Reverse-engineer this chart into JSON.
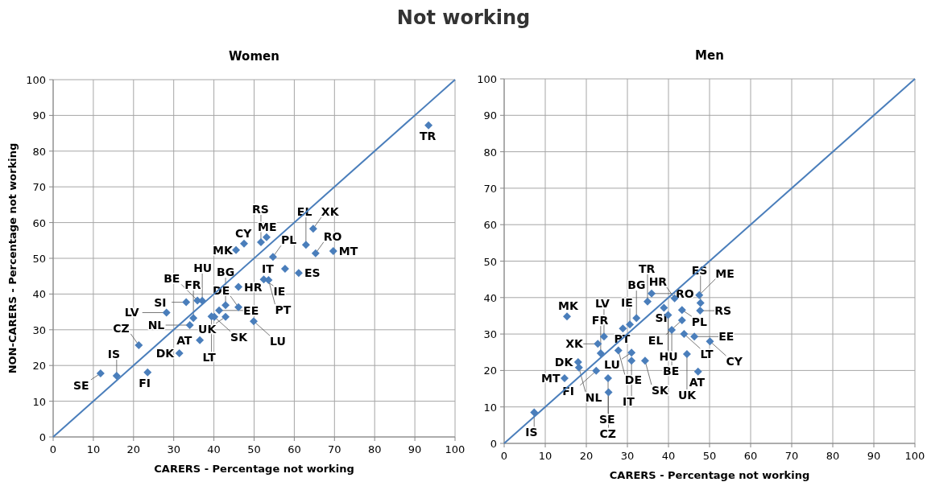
{
  "chart_data": [
    {
      "type": "scatter",
      "title": "Women",
      "xlabel": "CARERS - Percentage not working",
      "ylabel": "NON-CARERS - Percentage not working",
      "xlim": [
        0,
        100
      ],
      "ylim": [
        0,
        100
      ],
      "xticks": [
        0,
        10,
        20,
        30,
        40,
        50,
        60,
        70,
        80,
        90,
        100
      ],
      "yticks": [
        0,
        10,
        20,
        30,
        40,
        50,
        60,
        70,
        80,
        90,
        100
      ],
      "grid": true,
      "marker": "diamond",
      "series": [
        {
          "type": "scatter",
          "color": "#4a7ebb",
          "x": [
            11.8,
            15.8,
            21.3,
            23.5,
            31.4,
            36.5,
            34.0,
            40.1,
            42.9,
            49.9,
            46.1,
            42.9,
            41.3,
            39.4,
            34.9,
            35.9,
            33.1,
            28.2,
            37.1,
            46.1,
            45.5,
            47.5,
            51.7,
            53.1,
            54.7,
            57.7,
            52.4,
            53.6,
            61.1,
            62.9,
            64.7,
            69.7,
            65.3,
            93.4
          ],
          "values": [
            17.8,
            17.1,
            25.7,
            18.1,
            23.4,
            27.1,
            31.3,
            33.6,
            33.6,
            32.4,
            36.3,
            36.9,
            35.4,
            33.7,
            33.3,
            38.2,
            37.7,
            34.8,
            38.1,
            42.0,
            52.3,
            54.1,
            54.5,
            55.9,
            50.4,
            47.1,
            44.1,
            43.9,
            45.9,
            53.8,
            58.3,
            52.0,
            51.4,
            87.2
          ]
        },
        {
          "type": "line",
          "color": "#4a7ebb",
          "marker": "none",
          "x": [
            0,
            100
          ],
          "values": [
            0,
            100
          ]
        }
      ],
      "annotations": [
        "Not working",
        {
          "text": "SE",
          "x": 11.8,
          "y": 17.8
        },
        {
          "text": "IS",
          "x": 15.8,
          "y": 17.1
        },
        {
          "text": "CZ",
          "x": 21.3,
          "y": 25.7
        },
        {
          "text": "FI",
          "x": 23.5,
          "y": 18.1
        },
        {
          "text": "DK",
          "x": 31.4,
          "y": 23.4
        },
        {
          "text": "AT",
          "x": 36.5,
          "y": 27.1
        },
        {
          "text": "NL",
          "x": 34.0,
          "y": 31.3
        },
        {
          "text": "SK",
          "x": 40.1,
          "y": 33.6
        },
        {
          "text": "UK",
          "x": 42.9,
          "y": 33.6
        },
        {
          "text": "LU",
          "x": 49.9,
          "y": 32.4
        },
        {
          "text": "DE",
          "x": 46.1,
          "y": 36.3
        },
        {
          "text": "BG",
          "x": 42.9,
          "y": 36.9
        },
        {
          "text": "EE",
          "x": 41.3,
          "y": 35.4
        },
        {
          "text": "LT",
          "x": 39.4,
          "y": 33.7
        },
        {
          "text": "FR",
          "x": 34.9,
          "y": 33.3
        },
        {
          "text": "BE",
          "x": 35.9,
          "y": 38.2
        },
        {
          "text": "SI",
          "x": 33.1,
          "y": 37.7
        },
        {
          "text": "LV",
          "x": 28.2,
          "y": 34.8
        },
        {
          "text": "HU",
          "x": 37.1,
          "y": 38.1
        },
        {
          "text": "HR",
          "x": 46.1,
          "y": 42.0
        },
        {
          "text": "MK",
          "x": 45.5,
          "y": 52.3
        },
        {
          "text": "CY",
          "x": 47.5,
          "y": 54.1
        },
        {
          "text": "RS",
          "x": 51.7,
          "y": 54.5
        },
        {
          "text": "ME",
          "x": 53.1,
          "y": 55.9
        },
        {
          "text": "PL",
          "x": 54.7,
          "y": 50.4
        },
        {
          "text": "IT",
          "x": 57.7,
          "y": 47.1
        },
        {
          "text": "IE",
          "x": 52.4,
          "y": 44.1
        },
        {
          "text": "PT",
          "x": 53.6,
          "y": 43.9
        },
        {
          "text": "ES",
          "x": 61.1,
          "y": 45.9
        },
        {
          "text": "EL",
          "x": 62.9,
          "y": 53.8
        },
        {
          "text": "XK",
          "x": 64.7,
          "y": 58.3
        },
        {
          "text": "MT",
          "x": 69.7,
          "y": 52.0
        },
        {
          "text": "RO",
          "x": 65.3,
          "y": 51.4
        },
        {
          "text": "TR",
          "x": 93.4,
          "y": 87.2
        }
      ]
    },
    {
      "type": "scatter",
      "title": "Men",
      "xlabel": "CARERS - Percentage not working",
      "xlim": [
        0,
        100
      ],
      "ylim": [
        0,
        100
      ],
      "xticks": [
        0,
        10,
        20,
        30,
        40,
        50,
        60,
        70,
        80,
        90,
        100
      ],
      "yticks": [
        0,
        10,
        20,
        30,
        40,
        50,
        60,
        70,
        80,
        90,
        100
      ],
      "grid": true,
      "marker": "diamond",
      "series": [
        {
          "type": "scatter",
          "color": "#4a7ebb",
          "x": [
            7.3,
            18.2,
            14.7,
            18.0,
            22.8,
            24.3,
            28.9,
            32.2,
            30.6,
            27.8,
            23.5,
            22.4,
            25.3,
            25.4,
            31.0,
            31.0,
            34.3,
            15.3,
            34.9,
            35.9,
            38.9,
            41.5,
            39.9,
            40.8,
            43.3,
            43.3,
            43.8,
            44.5,
            47.2,
            47.5,
            47.8,
            47.7,
            46.3,
            50.1
          ],
          "values": [
            8.5,
            20.8,
            17.9,
            22.3,
            27.3,
            29.3,
            31.5,
            34.4,
            32.6,
            25.5,
            24.7,
            19.9,
            17.9,
            14.0,
            24.9,
            22.7,
            22.7,
            34.8,
            38.9,
            41.1,
            37.2,
            39.8,
            35.2,
            31.1,
            36.6,
            33.8,
            30.0,
            24.5,
            19.7,
            40.7,
            38.5,
            36.4,
            29.3,
            28.0
          ]
        },
        {
          "type": "line",
          "color": "#4a7ebb",
          "marker": "none",
          "x": [
            0,
            100
          ],
          "values": [
            0,
            100
          ]
        }
      ],
      "annotations": [
        {
          "text": "IS",
          "x": 7.3,
          "y": 8.5
        },
        {
          "text": "NL",
          "x": 18.2,
          "y": 20.8
        },
        {
          "text": "MT",
          "x": 14.7,
          "y": 17.9
        },
        {
          "text": "DK",
          "x": 18.0,
          "y": 22.3
        },
        {
          "text": "XK",
          "x": 22.8,
          "y": 27.3
        },
        {
          "text": "LV",
          "x": 24.3,
          "y": 29.3
        },
        {
          "text": "PT",
          "x": 28.9,
          "y": 31.5
        },
        {
          "text": "BG",
          "x": 32.2,
          "y": 34.4
        },
        {
          "text": "IE",
          "x": 30.6,
          "y": 32.6
        },
        {
          "text": "DE",
          "x": 27.8,
          "y": 25.5
        },
        {
          "text": "FR",
          "x": 23.5,
          "y": 24.7
        },
        {
          "text": "FI",
          "x": 22.4,
          "y": 19.9
        },
        {
          "text": "SE",
          "x": 25.3,
          "y": 17.9
        },
        {
          "text": "CZ",
          "x": 25.4,
          "y": 14.0
        },
        {
          "text": "LU",
          "x": 31.0,
          "y": 24.9
        },
        {
          "text": "IT",
          "x": 31.0,
          "y": 22.7
        },
        {
          "text": "SK",
          "x": 34.3,
          "y": 22.7
        },
        {
          "text": "MK",
          "x": 15.3,
          "y": 34.8
        },
        {
          "text": "TR",
          "x": 34.9,
          "y": 38.9
        },
        {
          "text": "RO",
          "x": 35.9,
          "y": 41.1
        },
        {
          "text": "SI",
          "x": 38.9,
          "y": 37.2
        },
        {
          "text": "HR",
          "x": 41.5,
          "y": 39.8
        },
        {
          "text": "HU",
          "x": 39.9,
          "y": 35.2
        },
        {
          "text": "BE",
          "x": 40.8,
          "y": 31.1
        },
        {
          "text": "PL",
          "x": 43.3,
          "y": 36.6
        },
        {
          "text": "EL",
          "x": 43.3,
          "y": 33.8
        },
        {
          "text": "LT",
          "x": 43.8,
          "y": 30.0
        },
        {
          "text": "UK",
          "x": 44.5,
          "y": 24.5
        },
        {
          "text": "AT",
          "x": 47.2,
          "y": 19.7
        },
        {
          "text": "ME",
          "x": 47.5,
          "y": 40.7
        },
        {
          "text": "ES",
          "x": 47.8,
          "y": 38.5
        },
        {
          "text": "RS",
          "x": 47.7,
          "y": 36.4
        },
        {
          "text": "EE",
          "x": 46.3,
          "y": 29.3
        },
        {
          "text": "CY",
          "x": 50.1,
          "y": 28.0
        }
      ]
    }
  ]
}
